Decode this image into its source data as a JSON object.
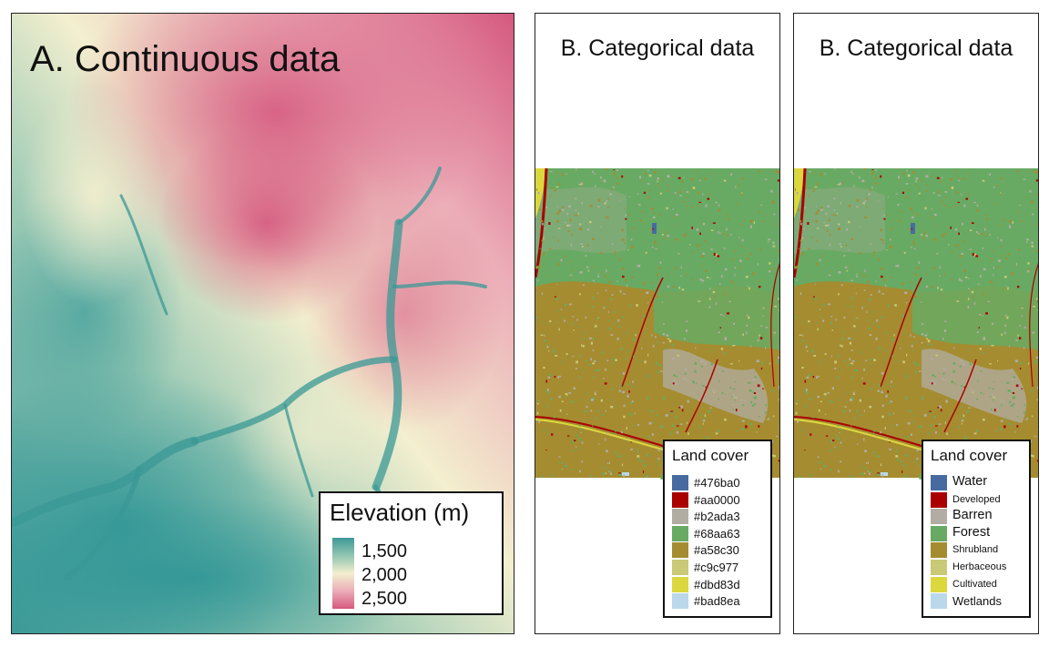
{
  "panel_a": {
    "title": "A. Continuous data",
    "legend": {
      "title": "Elevation (m)",
      "ticks": [
        "1,500",
        "2,000",
        "2,500"
      ],
      "colors": [
        "#3d9a98",
        "#f3efcf",
        "#d5587f"
      ]
    }
  },
  "panel_b1": {
    "title": "B. Categorical data",
    "legend": {
      "title": "Land cover",
      "items": [
        {
          "label": "#476ba0",
          "color": "#476ba0"
        },
        {
          "label": "#aa0000",
          "color": "#aa0000"
        },
        {
          "label": "#b2ada3",
          "color": "#b2ada3"
        },
        {
          "label": "#68aa63",
          "color": "#68aa63"
        },
        {
          "label": "#a58c30",
          "color": "#a58c30"
        },
        {
          "label": "#c9c977",
          "color": "#c9c977"
        },
        {
          "label": "#dbd83d",
          "color": "#dbd83d"
        },
        {
          "label": "#bad8ea",
          "color": "#bad8ea"
        }
      ]
    }
  },
  "panel_b2": {
    "title": "B. Categorical data",
    "legend": {
      "title": "Land cover",
      "items": [
        {
          "label": "Water",
          "color": "#476ba0"
        },
        {
          "label": "Developed",
          "color": "#aa0000"
        },
        {
          "label": "Barren",
          "color": "#b2ada3"
        },
        {
          "label": "Forest",
          "color": "#68aa63"
        },
        {
          "label": "Shrubland",
          "color": "#a58c30"
        },
        {
          "label": "Herbaceous",
          "color": "#c9c977"
        },
        {
          "label": "Cultivated",
          "color": "#dbd83d"
        },
        {
          "label": "Wetlands",
          "color": "#bad8ea"
        }
      ]
    }
  }
}
